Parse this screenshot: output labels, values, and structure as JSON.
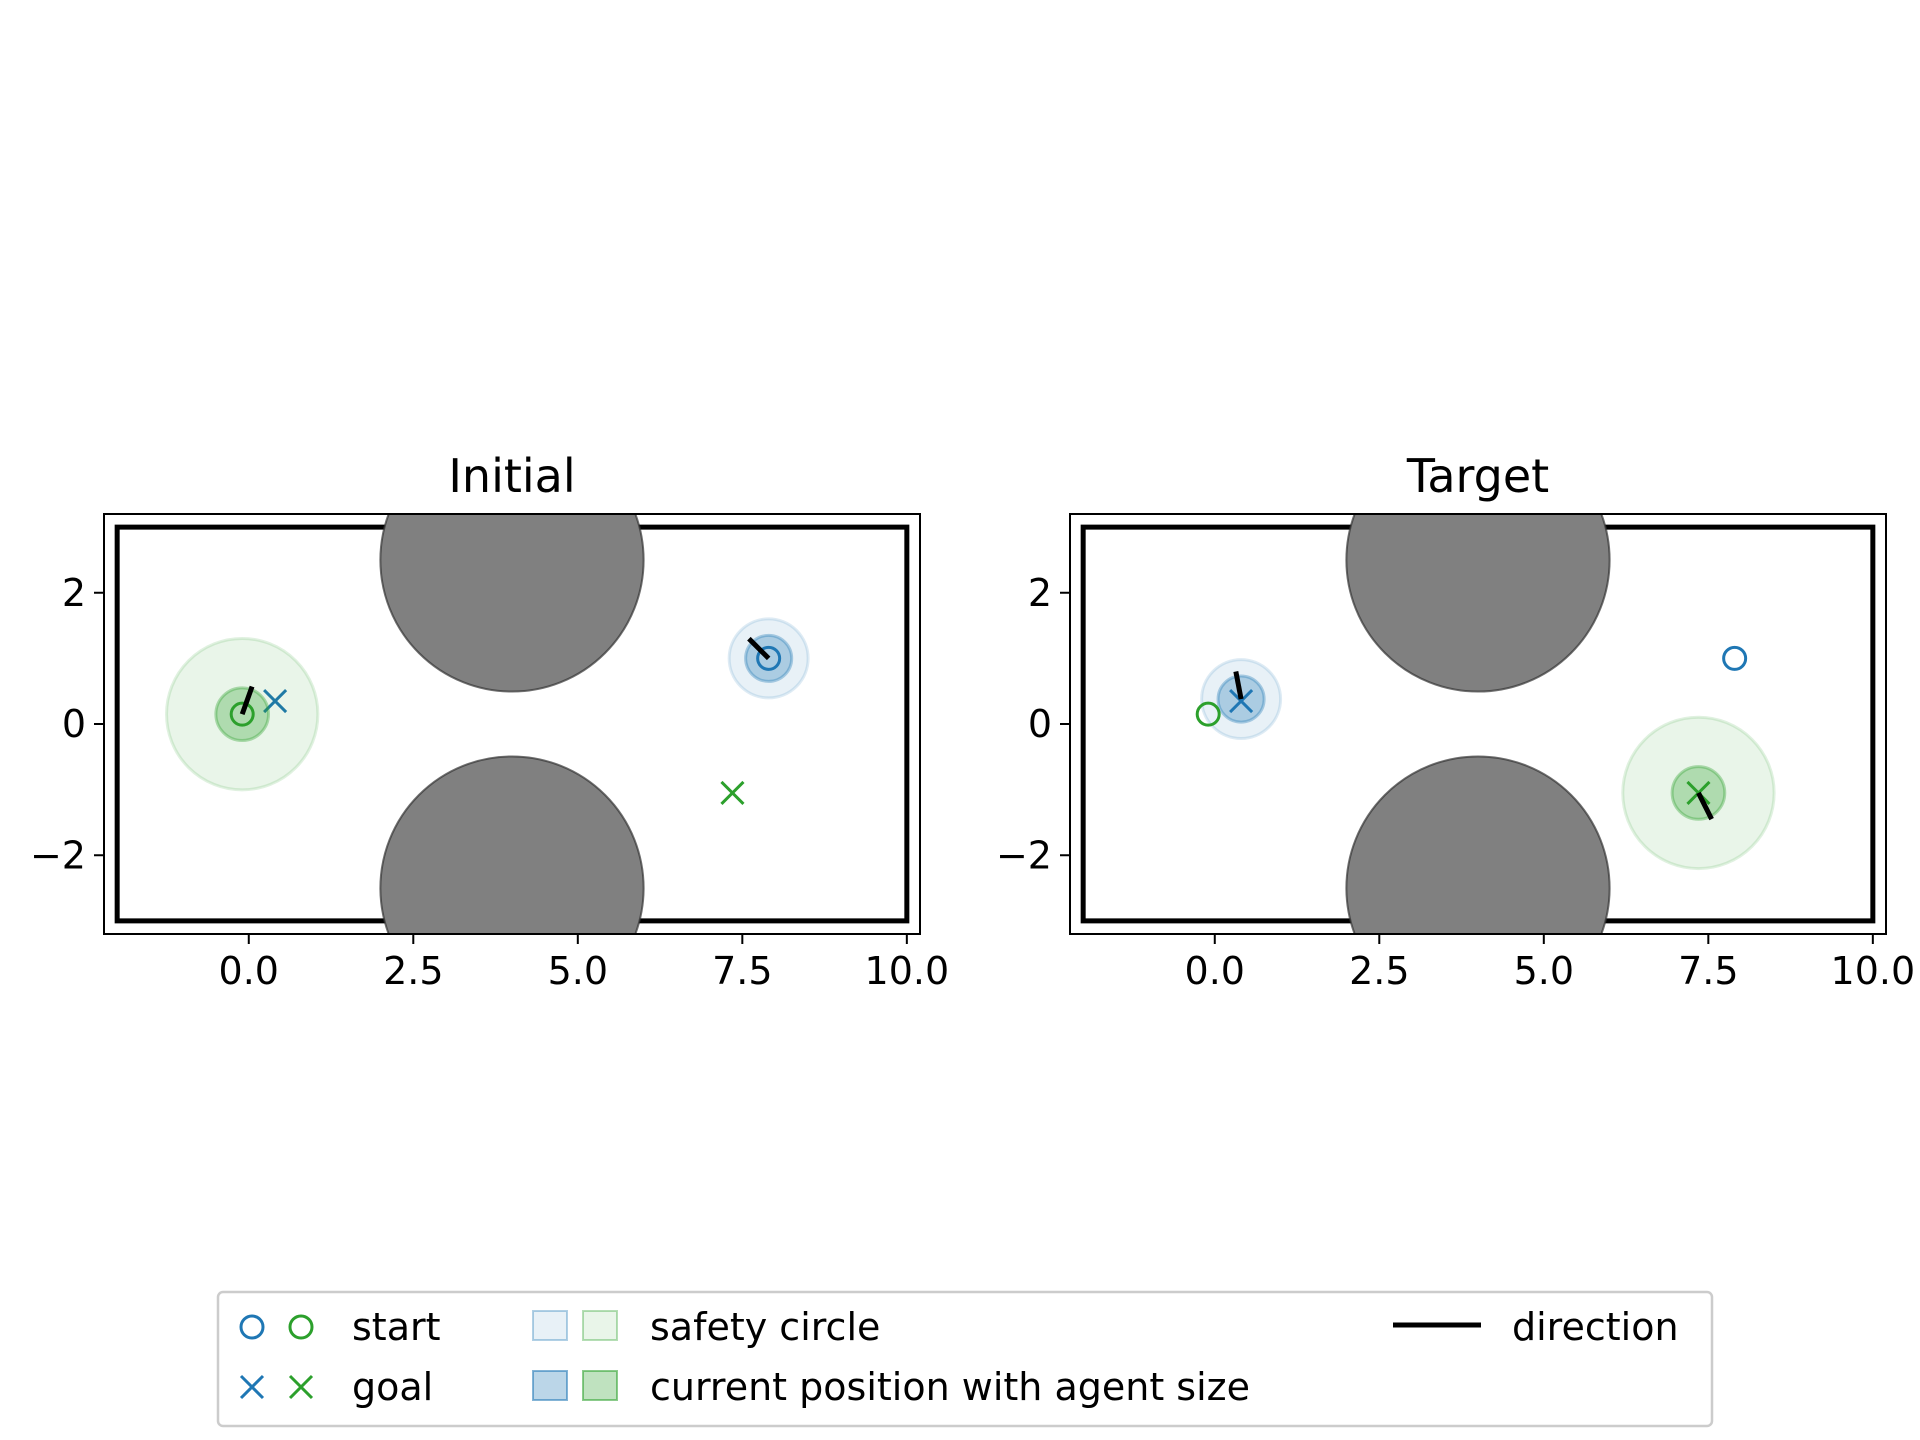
{
  "colors": {
    "agent1": "#1f77b4",
    "agent2": "#2ca02c",
    "obstacle": "#808080",
    "direction": "#000000",
    "boundary": "#000000"
  },
  "chart_data": [
    {
      "type": "scatter",
      "title": "Initial",
      "xlim": [
        -2.2,
        10.2
      ],
      "ylim": [
        -3.2,
        3.2
      ],
      "xticks": [
        0.0,
        2.5,
        5.0,
        7.5,
        10.0
      ],
      "xtick_labels": [
        "0.0",
        "2.5",
        "5.0",
        "7.5",
        "10.0"
      ],
      "yticks": [
        2,
        0,
        -2
      ],
      "ytick_labels": [
        "2",
        "0",
        "−2"
      ],
      "boundary": {
        "xmin": -2.0,
        "xmax": 10.0,
        "ymin": -3.0,
        "ymax": 3.0
      },
      "obstacles": [
        {
          "x": 4.0,
          "y": 2.5,
          "r": 2.0
        },
        {
          "x": 4.0,
          "y": -2.5,
          "r": 2.0
        }
      ],
      "agents": [
        {
          "color_key": "agent1",
          "start": [
            7.9,
            1.0
          ],
          "goal": [
            0.4,
            0.35
          ],
          "current": [
            7.9,
            1.0
          ],
          "agent_radius": 0.35,
          "safety_radius": 0.6,
          "direction": [
            -0.3,
            0.3
          ]
        },
        {
          "color_key": "agent2",
          "start": [
            -0.1,
            0.15
          ],
          "goal": [
            7.35,
            -1.05
          ],
          "current": [
            -0.1,
            0.15
          ],
          "agent_radius": 0.4,
          "safety_radius": 1.15,
          "direction": [
            0.15,
            0.42
          ]
        }
      ]
    },
    {
      "type": "scatter",
      "title": "Target",
      "xlim": [
        -2.2,
        10.2
      ],
      "ylim": [
        -3.2,
        3.2
      ],
      "xticks": [
        0.0,
        2.5,
        5.0,
        7.5,
        10.0
      ],
      "xtick_labels": [
        "0.0",
        "2.5",
        "5.0",
        "7.5",
        "10.0"
      ],
      "yticks": [
        2,
        0,
        -2
      ],
      "ytick_labels": [
        "2",
        "0",
        "−2"
      ],
      "boundary": {
        "xmin": -2.0,
        "xmax": 10.0,
        "ymin": -3.0,
        "ymax": 3.0
      },
      "obstacles": [
        {
          "x": 4.0,
          "y": 2.5,
          "r": 2.0
        },
        {
          "x": 4.0,
          "y": -2.5,
          "r": 2.0
        }
      ],
      "agents": [
        {
          "color_key": "agent1",
          "start": [
            7.9,
            1.0
          ],
          "goal": [
            0.4,
            0.35
          ],
          "current": [
            0.4,
            0.38
          ],
          "agent_radius": 0.35,
          "safety_radius": 0.6,
          "direction": [
            -0.08,
            0.42
          ]
        },
        {
          "color_key": "agent2",
          "start": [
            -0.1,
            0.15
          ],
          "goal": [
            7.35,
            -1.05
          ],
          "current": [
            7.35,
            -1.05
          ],
          "agent_radius": 0.4,
          "safety_radius": 1.15,
          "direction": [
            0.2,
            -0.4
          ]
        }
      ]
    }
  ],
  "legend": {
    "placement": "bottom-center",
    "start_label": "start",
    "goal_label": "goal",
    "safety_label": "safety circle",
    "current_label": "current position with agent size",
    "direction_label": "direction"
  }
}
